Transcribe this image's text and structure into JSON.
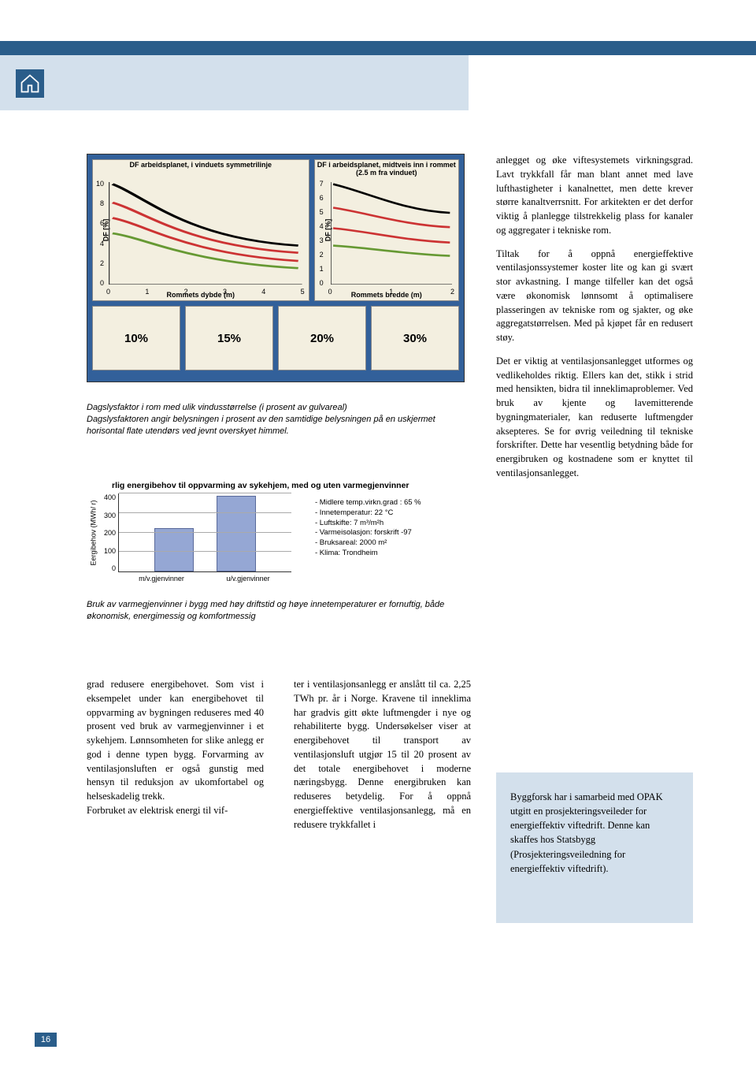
{
  "colors": {
    "dark_blue": "#2a5d8a",
    "light_blue": "#d3e0ec",
    "chart_bg_outer": "#32609a",
    "chart_bg_inner": "#f3efe0",
    "bar_fill": "#95a7d4",
    "bar_border": "#5a6a9a",
    "grid": "#aaaaaa",
    "line_black": "#000000",
    "line_red": "#cc3333",
    "line_green": "#669933"
  },
  "chart_panel": {
    "left": {
      "title": "DF arbeidsplanet, i vinduets symmetrilinje",
      "y_label": "DF [%]",
      "x_label": "Rommets dybde (m)",
      "y_ticks": [
        0,
        2,
        4,
        6,
        8,
        10
      ],
      "x_ticks": [
        0,
        1,
        2,
        3,
        4,
        5
      ],
      "series": [
        {
          "color": "#000000",
          "y0": 10,
          "curve": "high"
        },
        {
          "color": "#cc3333",
          "y0": 8,
          "curve": "mid"
        },
        {
          "color": "#cc3333",
          "y0": 6.5,
          "curve": "midlow"
        },
        {
          "color": "#669933",
          "y0": 5,
          "curve": "low"
        }
      ]
    },
    "right": {
      "title": "DF i arbeidsplanet, midtveis inn i rommet (2.5 m fra vinduet)",
      "y_label": "DF [%]",
      "x_label": "Rommets bredde (m)",
      "y_ticks": [
        0,
        1,
        2,
        3,
        4,
        5,
        6,
        7
      ],
      "x_ticks": [
        0,
        1,
        2
      ],
      "series": [
        {
          "color": "#000000"
        },
        {
          "color": "#cc3333"
        },
        {
          "color": "#cc3333"
        },
        {
          "color": "#669933"
        }
      ]
    },
    "percent_labels": [
      "10%",
      "15%",
      "20%",
      "30%"
    ]
  },
  "graphic_caption": "Dagslysfaktor i rom med ulik vindusstørrelse (i prosent av gulvareal)\nDagslysfaktoren angir belysningen i prosent av den samtidige belysningen på en uskjermet horisontal flate utendørs ved jevnt overskyet himmel.",
  "bar_chart": {
    "title": "rlig energibehov til oppvarming av sykehjem, med og uten varmegjenvinner",
    "y_label": "Eergibehov (MWh/ r)",
    "y_ticks": [
      400,
      300,
      200,
      100,
      0
    ],
    "ylim": [
      0,
      400
    ],
    "bars": [
      {
        "label": "m/v.gjenvinner",
        "value": 225
      },
      {
        "label": "u/v.gjenvinner",
        "value": 390
      }
    ],
    "notes": [
      "- Midlere temp.virkn.grad : 65 %",
      "- Innetemperatur: 22 °C",
      "- Luftskifte: 7 m³/m²h",
      "- Varmeisolasjon: forskrift -97",
      "- Bruksareal: 2000 m²",
      "- Klima: Trondheim"
    ]
  },
  "bar_caption": "Bruk av varmegjenvinner i bygg med høy driftstid og høye innetemperaturer er fornuftig, både økonomisk, energimessig og komfortmessig",
  "right_col": {
    "p1": "anlegget og øke viftesystemets virkningsgrad. Lavt trykkfall får man blant annet med lave lufthastigheter i kanalnettet, men dette krever større kanaltverrsnitt. For arkitekten er det derfor viktig å planlegge tilstrekkelig plass for kanaler og aggregater i tekniske rom.",
    "p2": "Tiltak for å oppnå energieffektive ventilasjonssystemer koster lite og kan gi svært stor avkastning. I mange tilfeller kan det også være økonomisk lønnsomt å optimalisere plasseringen av tekniske rom og sjakter, og øke aggregatstørrelsen. Med på kjøpet får en redusert støy.",
    "p3": "Det er viktig at ventilasjonsanlegget utformes og vedlikeholdes riktig. Ellers kan det, stikk i strid med hensikten, bidra til inneklimaproblemer. Ved bruk av kjente og lavemitterende bygningmaterialer, kan reduserte luftmengder aksepteres. Se for øvrig veiledning til tekniske forskrifter. Dette har vesentlig betydning både for energibruken og kostnadene som er knyttet til ventilasjonsanlegget."
  },
  "bottom_cols": {
    "col1": "grad redusere energibehovet. Som vist i eksempelet under kan energibehovet til oppvarming av bygningen reduseres med 40 prosent ved bruk av varmegjenvinner i et sykehjem. Lønnsomheten for slike anlegg er god i denne typen bygg. Forvarming av ventilasjonsluften er også gunstig med hensyn til reduksjon av ukomfortabel og helseskadelig trekk.\nForbruket av elektrisk energi til vif-",
    "col2": "ter i ventilasjonsanlegg er anslått til ca. 2,25 TWh pr. år i Norge. Kravene til inneklima har gradvis gitt økte luftmengder i nye og rehabiliterte bygg. Undersøkelser viser at energibehovet til transport av ventilasjonsluft utgjør 15 til 20 prosent av det totale energibehovet i moderne næringsbygg. Denne energibruken kan reduseres betydelig. For å oppnå energieffektive ventilasjonsanlegg, må en redusere trykkfallet i"
  },
  "callout": "Byggforsk har i samarbeid med OPAK utgitt en prosjekteringsveileder for energieffektiv viftedrift. Denne kan skaffes hos Statsbygg (Prosjekteringsveiledning for energieffektiv viftedrift).",
  "page_number": "16"
}
